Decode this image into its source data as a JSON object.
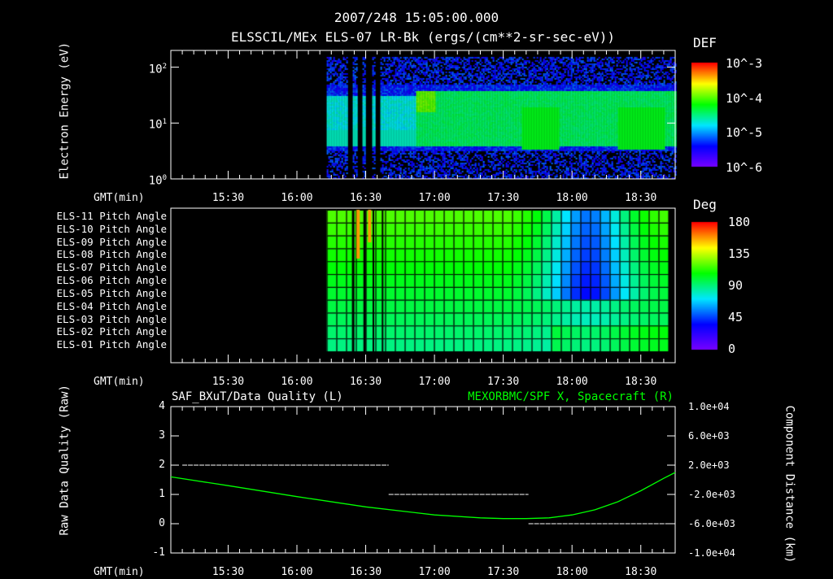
{
  "header": {
    "timestamp": "2007/248 15:05:00.000",
    "title": "ELSSCIL/MEx ELS-07 LR-Bk  (ergs/(cm**2-sr-sec-eV))"
  },
  "time_axis": {
    "label": "GMT(min)",
    "ticks": [
      "15:30",
      "16:00",
      "16:30",
      "17:00",
      "17:30",
      "18:00",
      "18:30"
    ],
    "range_minutes": [
      905,
      1125
    ]
  },
  "chart_data": [
    {
      "type": "heatmap",
      "name": "electron-spectrogram",
      "ylabel": "Electron Energy (eV)",
      "yscale": "log",
      "ylim": [
        1,
        200
      ],
      "yticks": [
        "10^0",
        "10^1",
        "10^2"
      ],
      "colorbar": {
        "label": "DEF",
        "ticks": [
          "10^-3",
          "10^-4",
          "10^-5",
          "10^-6"
        ],
        "range": [
          1e-06,
          0.001
        ]
      },
      "data_start": "16:13",
      "data_end": "18:45",
      "gaps": [
        "16:23",
        "16:27",
        "16:31",
        "16:35"
      ]
    },
    {
      "type": "heatmap",
      "name": "pitch-angle",
      "rows": [
        "ELS-11 Pitch Angle",
        "ELS-10 Pitch Angle",
        "ELS-09 Pitch Angle",
        "ELS-08 Pitch Angle",
        "ELS-07 Pitch Angle",
        "ELS-06 Pitch Angle",
        "ELS-05 Pitch Angle",
        "ELS-04 Pitch Angle",
        "ELS-03 Pitch Angle",
        "ELS-02 Pitch Angle",
        "ELS-01 Pitch Angle"
      ],
      "colorbar": {
        "label": "Deg",
        "ticks": [
          "180",
          "135",
          "90",
          "45",
          "0"
        ],
        "range": [
          0,
          180
        ]
      },
      "data_start": "16:13",
      "data_end": "18:40"
    },
    {
      "type": "line",
      "name": "quality-and-position",
      "left_title": "SAF_BXuT/Data Quality (L)",
      "right_title": "MEXORBMC/SPF X, Spacecraft (R)",
      "ylabel_left": "Raw Data Quality (Raw)",
      "ylabel_right": "Component Distance (km)",
      "ylim_left": [
        -1,
        4
      ],
      "yticks_left": [
        "4",
        "3",
        "2",
        "1",
        "0",
        "-1"
      ],
      "ylim_right": [
        -10000,
        10000
      ],
      "yticks_right": [
        "1.0e+04",
        "6.0e+03",
        "2.0e+03",
        "-2.0e+03",
        "-6.0e+03",
        "-1.0e+04"
      ],
      "series": [
        {
          "name": "Data Quality",
          "color": "#ffffff",
          "segments": [
            {
              "x": [
                910,
                1000
              ],
              "y": 2
            },
            {
              "x": [
                1000,
                1061
              ],
              "y": 1
            },
            {
              "x": [
                1061,
                1122
              ],
              "y": 0
            }
          ]
        },
        {
          "name": "SPF X",
          "color": "#00ff00",
          "x": [
            905,
            930,
            960,
            990,
            1020,
            1040,
            1050,
            1060,
            1070,
            1080,
            1090,
            1100,
            1110,
            1120,
            1125
          ],
          "y": [
            400,
            -800,
            -2300,
            -3700,
            -4800,
            -5200,
            -5300,
            -5300,
            -5200,
            -4800,
            -4100,
            -3000,
            -1500,
            200,
            1000
          ]
        }
      ]
    }
  ]
}
